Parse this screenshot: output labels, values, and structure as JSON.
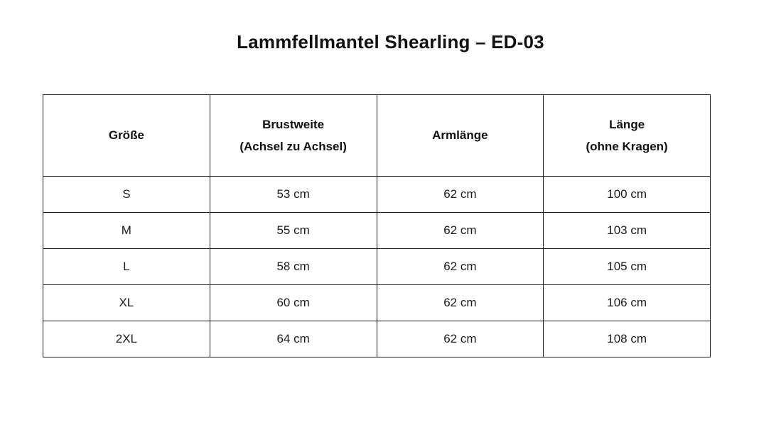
{
  "page": {
    "title": "Lammfellmantel Shearling – ED-03"
  },
  "size_table": {
    "headers": [
      "Größe",
      "Brustweite\n(Achsel zu Achsel)",
      "Armlänge",
      "Länge\n(ohne Kragen)"
    ],
    "rows": [
      {
        "size": "S",
        "chest": "53 cm",
        "arm": "62 cm",
        "length": "100 cm"
      },
      {
        "size": "M",
        "chest": "55 cm",
        "arm": "62 cm",
        "length": "103 cm"
      },
      {
        "size": "L",
        "chest": "58 cm",
        "arm": "62 cm",
        "length": "105 cm"
      },
      {
        "size": "XL",
        "chest": "60 cm",
        "arm": "62 cm",
        "length": "106 cm"
      },
      {
        "size": "2XL",
        "chest": "64 cm",
        "arm": "62 cm",
        "length": "108 cm"
      }
    ],
    "colors": {
      "background": "#ffffff",
      "border": "#1c1c1c",
      "text": "#111111"
    }
  }
}
